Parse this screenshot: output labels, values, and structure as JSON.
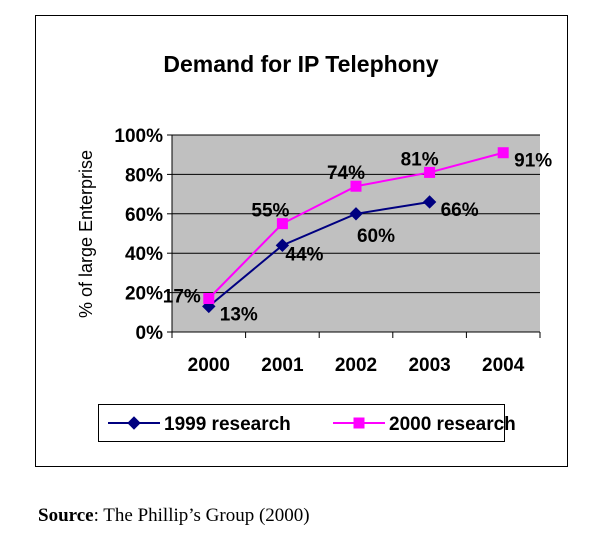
{
  "chart_data": {
    "type": "line",
    "title": "Demand for IP Telephony",
    "xlabel": "",
    "ylabel": "% of large Enterprise",
    "categories": [
      "2000",
      "2001",
      "2002",
      "2003",
      "2004"
    ],
    "ylim": [
      0,
      100
    ],
    "yticks": [
      "0%",
      "20%",
      "40%",
      "60%",
      "80%",
      "100%"
    ],
    "ytick_values": [
      0,
      20,
      40,
      60,
      80,
      100
    ],
    "grid": true,
    "legend_position": "bottom",
    "plot_background": "#c0c0c0",
    "series": [
      {
        "name": "1999 research",
        "color": "#000080",
        "marker": "diamond",
        "values": [
          13,
          44,
          60,
          66,
          null
        ],
        "labels": [
          "13%",
          "44%",
          "60%",
          "66%",
          null
        ]
      },
      {
        "name": "2000 research",
        "color": "#ff00ff",
        "marker": "square",
        "values": [
          17,
          55,
          74,
          81,
          91
        ],
        "labels": [
          "17%",
          "55%",
          "74%",
          "81%",
          "91%"
        ]
      }
    ]
  },
  "source": {
    "label": "Source",
    "text": ": The Phillip’s Group (2000)"
  }
}
